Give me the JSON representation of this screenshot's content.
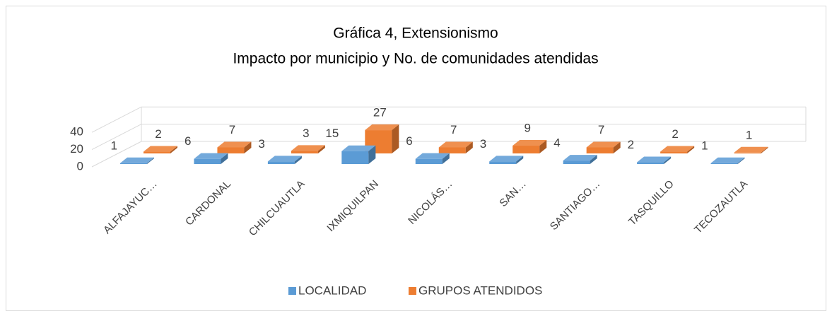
{
  "chart_data": {
    "type": "bar3d",
    "title": "Gráfica 4, Extensionismo",
    "subtitle": "Impacto por municipio y No. de comunidades atendidas",
    "categories": [
      "ALFAJAYUC…",
      "CARDONAL",
      "CHILCUAUTLA",
      "IXMIQUILPAN",
      "NICOLÁS…",
      "SAN…",
      "SANTIAGO…",
      "TASQUILLO",
      "TECOZAUTLA"
    ],
    "series": [
      {
        "name": "LOCALIDAD",
        "color": "#5b9bd5",
        "values": [
          1,
          6,
          3,
          15,
          6,
          3,
          4,
          2,
          1
        ]
      },
      {
        "name": "GRUPOS ATENDIDOS",
        "color": "#ed7d31",
        "values": [
          2,
          7,
          3,
          27,
          7,
          9,
          7,
          2,
          1
        ]
      }
    ],
    "ylim": [
      0,
      40
    ],
    "yticks": [
      0,
      20,
      40
    ],
    "grid": true,
    "legend": "bottom"
  }
}
